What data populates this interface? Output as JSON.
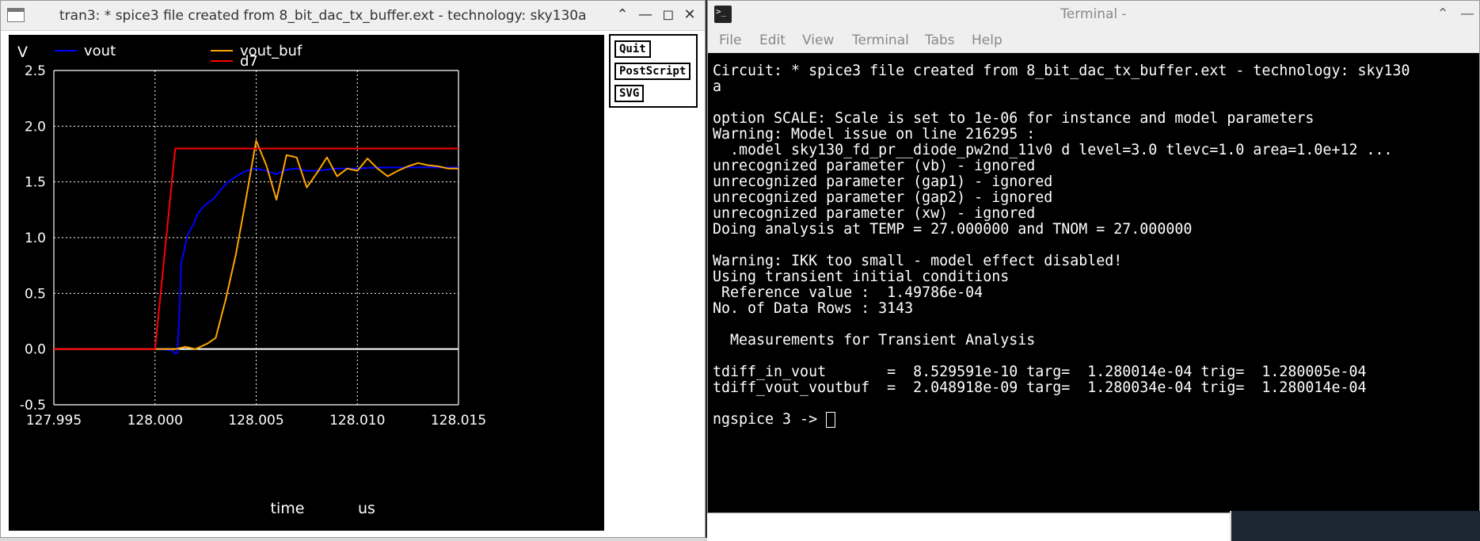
{
  "plot_window": {
    "title": "tran3: * spice3 file created from 8_bit_dac_tx_buffer.ext - technology: sky130a",
    "buttons": {
      "quit": "Quit",
      "postscript": "PostScript",
      "svg": "SVG"
    }
  },
  "chart_data": {
    "type": "line",
    "ylabel": "V",
    "xlabel": "time",
    "xunit": "us",
    "xlim": [
      127.995,
      128.015
    ],
    "ylim": [
      -0.5,
      2.5
    ],
    "xticks": [
      "127.995",
      "128.000",
      "128.005",
      "128.010",
      "128.015"
    ],
    "yticks": [
      "2.5",
      "2.0",
      "1.5",
      "1.0",
      "0.5",
      "0.0",
      "-0.5"
    ],
    "grid": true,
    "legend": "top",
    "series": [
      {
        "name": "vout",
        "color": "#0000ff",
        "x": [
          127.995,
          128.0,
          128.0008,
          128.001,
          128.0011,
          128.0012,
          128.0013,
          128.0014,
          128.0016,
          128.0019,
          128.0021,
          128.0024,
          128.0029,
          128.0033,
          128.0036,
          128.0041,
          128.0045,
          128.005,
          128.0055,
          128.006,
          128.0065,
          128.007,
          128.0075,
          128.008,
          128.009,
          128.01,
          128.011,
          128.012,
          128.013,
          128.014,
          128.015
        ],
        "y": [
          0.0,
          0.0,
          -0.01,
          -0.04,
          -0.03,
          0.3,
          0.78,
          0.85,
          1.02,
          1.12,
          1.21,
          1.28,
          1.35,
          1.44,
          1.5,
          1.56,
          1.6,
          1.62,
          1.6,
          1.57,
          1.61,
          1.62,
          1.6,
          1.6,
          1.62,
          1.62,
          1.63,
          1.63,
          1.63,
          1.63,
          1.63
        ]
      },
      {
        "name": "vout_buf",
        "color": "#ffa500",
        "x": [
          127.995,
          128.0,
          128.001,
          128.0015,
          128.002,
          128.0026,
          128.003,
          128.0035,
          128.004,
          128.0045,
          128.005,
          128.0055,
          128.006,
          128.0065,
          128.007,
          128.0075,
          128.008,
          128.0085,
          128.009,
          128.0095,
          128.01,
          128.0105,
          128.011,
          128.0115,
          128.012,
          128.0125,
          128.013,
          128.0135,
          128.014,
          128.0145,
          128.015
        ],
        "y": [
          0.0,
          0.0,
          0.0,
          0.02,
          0.0,
          0.05,
          0.1,
          0.45,
          0.85,
          1.35,
          1.87,
          1.65,
          1.34,
          1.74,
          1.72,
          1.45,
          1.58,
          1.72,
          1.55,
          1.62,
          1.6,
          1.71,
          1.62,
          1.55,
          1.6,
          1.64,
          1.67,
          1.65,
          1.64,
          1.62,
          1.62
        ]
      },
      {
        "name": "d7",
        "color": "#ff0000",
        "x": [
          127.995,
          128.0,
          128.001,
          128.015
        ],
        "y": [
          0.0,
          0.0,
          1.8,
          1.8
        ]
      }
    ]
  },
  "terminal": {
    "title": "Terminal -",
    "menu": [
      "File",
      "Edit",
      "View",
      "Terminal",
      "Tabs",
      "Help"
    ],
    "lines": [
      "Circuit: * spice3 file created from 8_bit_dac_tx_buffer.ext - technology: sky130",
      "a",
      "",
      "option SCALE: Scale is set to 1e-06 for instance and model parameters",
      "Warning: Model issue on line 216295 :",
      "  .model sky130_fd_pr__diode_pw2nd_11v0 d level=3.0 tlevc=1.0 area=1.0e+12 ...",
      "unrecognized parameter (vb) - ignored",
      "unrecognized parameter (gap1) - ignored",
      "unrecognized parameter (gap2) - ignored",
      "unrecognized parameter (xw) - ignored",
      "Doing analysis at TEMP = 27.000000 and TNOM = 27.000000",
      "",
      "Warning: IKK too small - model effect disabled!",
      "Using transient initial conditions",
      " Reference value :  1.49786e-04",
      "No. of Data Rows : 3143",
      "",
      "  Measurements for Transient Analysis",
      "",
      "tdiff_in_vout       =  8.529591e-10 targ=  1.280014e-04 trig=  1.280005e-04",
      "tdiff_vout_voutbuf  =  2.048918e-09 targ=  1.280034e-04 trig=  1.280014e-04",
      ""
    ],
    "prompt": "ngspice 3 -> "
  }
}
